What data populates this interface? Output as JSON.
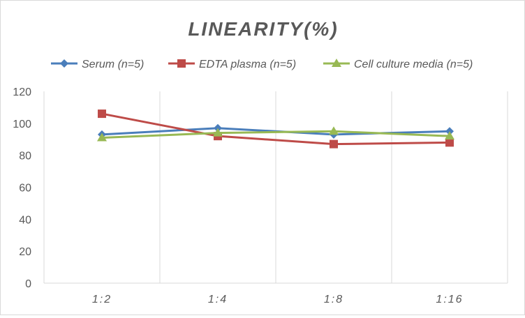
{
  "chart_data": {
    "type": "line",
    "title": "LINEARITY(%)",
    "categories": [
      "1:2",
      "1:4",
      "1:8",
      "1:16"
    ],
    "ylim": [
      0,
      120
    ],
    "yticks": [
      0,
      20,
      40,
      60,
      80,
      100,
      120
    ],
    "grid": "vertical",
    "legend": "top",
    "series": [
      {
        "name": "Serum (n=5)",
        "color": "#4a7ebb",
        "marker": "diamond",
        "values": [
          93,
          97,
          93,
          95
        ]
      },
      {
        "name": "EDTA plasma (n=5)",
        "color": "#be4b48",
        "marker": "square",
        "values": [
          106,
          92,
          87,
          88
        ]
      },
      {
        "name": "Cell culture media (n=5)",
        "color": "#98b954",
        "marker": "triangle",
        "values": [
          91,
          94,
          95,
          92
        ]
      }
    ]
  }
}
